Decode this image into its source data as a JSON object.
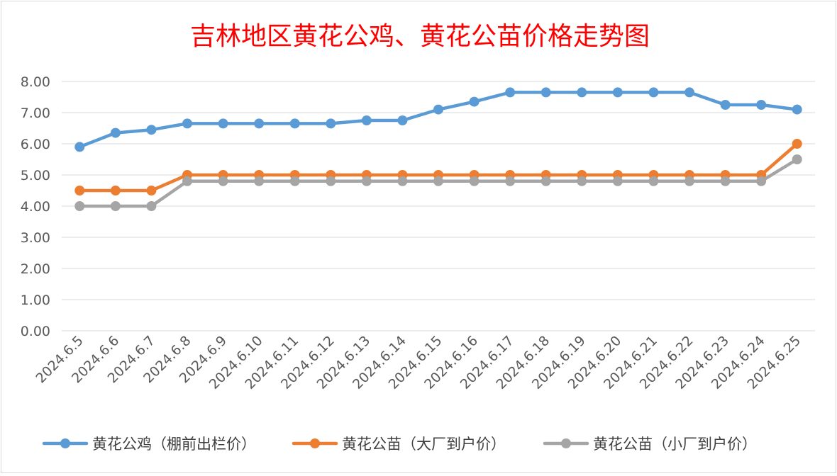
{
  "chart_data": {
    "type": "line",
    "title": "吉林地区黄花公鸡、黄花公苗价格走势图",
    "xlabel": "",
    "ylabel": "",
    "ylim": [
      0,
      8
    ],
    "y_ticks": [
      "0.00",
      "1.00",
      "2.00",
      "3.00",
      "4.00",
      "5.00",
      "6.00",
      "7.00",
      "8.00"
    ],
    "grid": "horizontal",
    "legend_position": "bottom",
    "categories": [
      "2024.6.5",
      "2024.6.6",
      "2024.6.7",
      "2024.6.8",
      "2024.6.9",
      "2024.6.10",
      "2024.6.11",
      "2024.6.12",
      "2024.6.13",
      "2024.6.14",
      "2024.6.15",
      "2024.6.16",
      "2024.6.17",
      "2024.6.18",
      "2024.6.19",
      "2024.6.20",
      "2024.6.21",
      "2024.6.22",
      "2024.6.23",
      "2024.6.24",
      "2024.6.25"
    ],
    "series": [
      {
        "name": "黄花公鸡（棚前出栏价）",
        "color": "#5b9bd5",
        "values": [
          5.9,
          6.35,
          6.45,
          6.65,
          6.65,
          6.65,
          6.65,
          6.65,
          6.75,
          6.75,
          7.1,
          7.35,
          7.65,
          7.65,
          7.65,
          7.65,
          7.65,
          7.65,
          7.25,
          7.25,
          7.1
        ]
      },
      {
        "name": "黄花公苗（大厂到户价）",
        "color": "#ed7d31",
        "values": [
          4.5,
          4.5,
          4.5,
          5.0,
          5.0,
          5.0,
          5.0,
          5.0,
          5.0,
          5.0,
          5.0,
          5.0,
          5.0,
          5.0,
          5.0,
          5.0,
          5.0,
          5.0,
          5.0,
          5.0,
          6.0
        ]
      },
      {
        "name": "黄花公苗（小厂到户价）",
        "color": "#a5a5a5",
        "values": [
          4.0,
          4.0,
          4.0,
          4.8,
          4.8,
          4.8,
          4.8,
          4.8,
          4.8,
          4.8,
          4.8,
          4.8,
          4.8,
          4.8,
          4.8,
          4.8,
          4.8,
          4.8,
          4.8,
          4.8,
          5.5
        ]
      }
    ]
  },
  "colors": {
    "title": "#ff0000",
    "grid": "#d9d9d9",
    "tick_text": "#595959",
    "legend_text": "#404040"
  }
}
